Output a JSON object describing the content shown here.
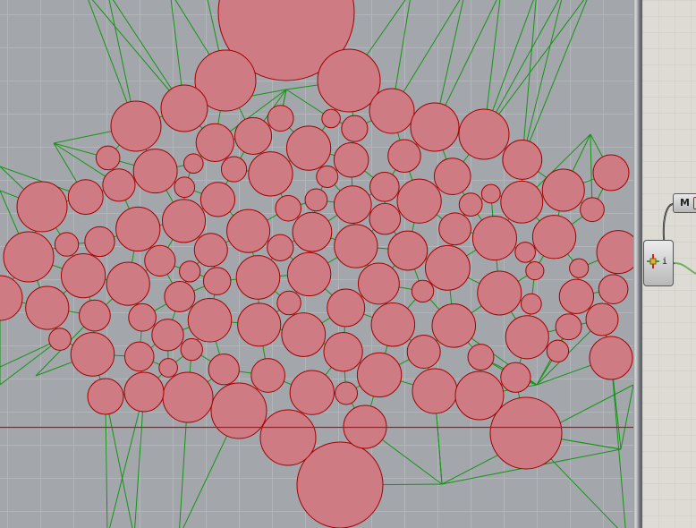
{
  "colors": {
    "viewport_bg": "#a3a7ac",
    "grid_line": "#b2b5b9",
    "circle_fill": "#cf7b84",
    "circle_stroke": "#a40000",
    "mesh_line": "#149414",
    "axis_line": "#c01515",
    "canvas_bg": "#dddbd4",
    "wire": "#3a3a3a"
  },
  "viewport": {
    "name": "Rhino viewport"
  },
  "canvas": {
    "param_label": "M",
    "component_output_label": "i",
    "component_icon": "point-move-icon"
  }
}
